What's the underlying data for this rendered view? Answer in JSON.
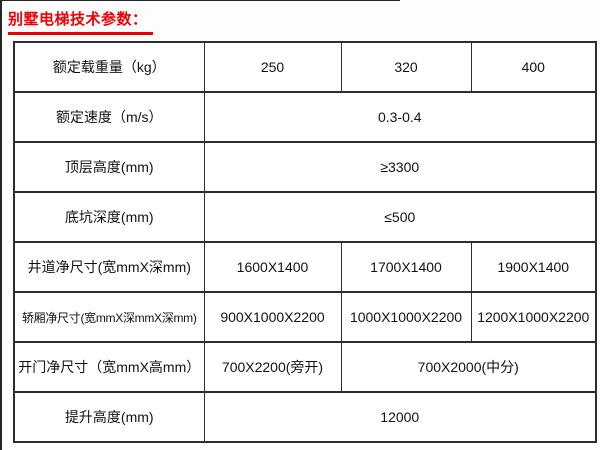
{
  "page": {
    "title": "别墅电梯技术参数：",
    "accent_color": "#ee0000",
    "border_color": "#2e2e2e",
    "background_color": "#fdfdfd"
  },
  "table": {
    "col_count": 4,
    "rows": [
      {
        "label": "额定载重量（kg）",
        "cells": [
          {
            "text": "250",
            "span": 1
          },
          {
            "text": "320",
            "span": 1
          },
          {
            "text": "400",
            "span": 1
          }
        ]
      },
      {
        "label": "额定速度（m/s）",
        "cells": [
          {
            "text": "0.3-0.4",
            "span": 3
          }
        ]
      },
      {
        "label": "顶层高度(mm)",
        "cells": [
          {
            "text": "≥3300",
            "span": 3
          }
        ]
      },
      {
        "label": "底坑深度(mm)",
        "cells": [
          {
            "text": "≤500",
            "span": 3
          }
        ]
      },
      {
        "label": "井道净尺寸(宽mmX深mm)",
        "cells": [
          {
            "text": "1600X1400",
            "span": 1
          },
          {
            "text": "1700X1400",
            "span": 1
          },
          {
            "text": "1900X1400",
            "span": 1
          }
        ]
      },
      {
        "label": "轿厢净尺寸(宽mmX深mmX深mm)",
        "cells": [
          {
            "text": "900X1000X2200",
            "span": 1
          },
          {
            "text": "1000X1000X2200",
            "span": 1
          },
          {
            "text": "1200X1000X2200",
            "span": 1
          }
        ]
      },
      {
        "label": "开门净尺寸（宽mmX高mm）",
        "cells": [
          {
            "text": "700X2200(旁开)",
            "span": 1
          },
          {
            "text": "700X2000(中分)",
            "span": 2
          }
        ]
      },
      {
        "label": "提升高度(mm)",
        "cells": [
          {
            "text": "12000",
            "span": 3
          }
        ]
      }
    ]
  }
}
